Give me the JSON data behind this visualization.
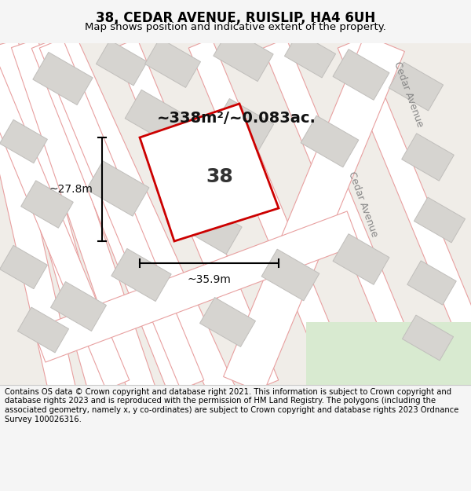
{
  "title": "38, CEDAR AVENUE, RUISLIP, HA4 6UH",
  "subtitle": "Map shows position and indicative extent of the property.",
  "area_text": "~338m²/~0.083ac.",
  "property_number": "38",
  "dim_width": "~35.9m",
  "dim_height": "~27.8m",
  "footer": "Contains OS data © Crown copyright and database right 2021. This information is subject to Crown copyright and database rights 2023 and is reproduced with the permission of HM Land Registry. The polygons (including the associated geometry, namely x, y co-ordinates) are subject to Crown copyright and database rights 2023 Ordnance Survey 100026316.",
  "bg_color": "#f5f5f5",
  "map_bg": "#ffffff",
  "road_color": "#ffffff",
  "grid_line_color": "#f0b8b8",
  "building_color": "#d0d0d0",
  "building_edge": "#bbbbbb",
  "property_fill": "#ffffff",
  "property_edge": "#cc0000",
  "road_label_color": "#888888",
  "title_color": "#000000",
  "footer_color": "#000000",
  "dim_color": "#000000"
}
